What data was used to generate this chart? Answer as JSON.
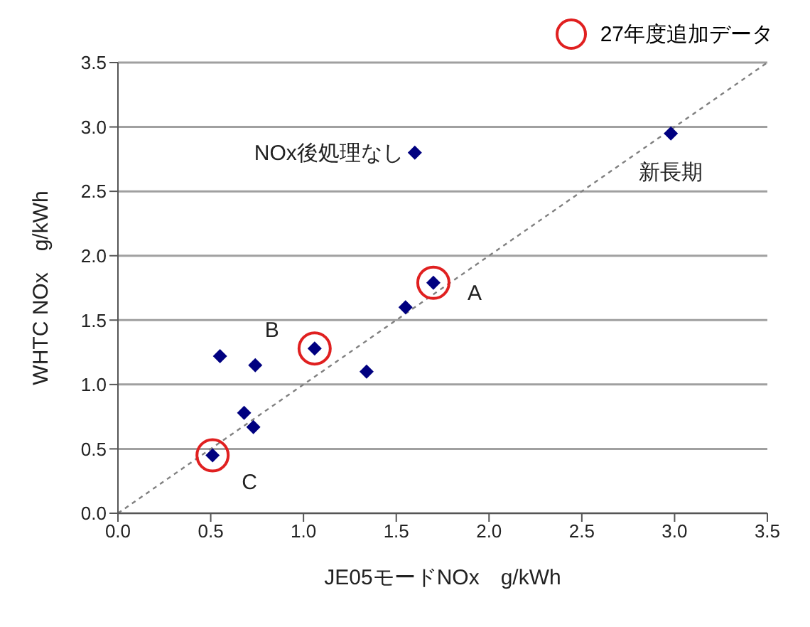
{
  "chart_data": {
    "type": "scatter",
    "xlabel": "JE05モードNOx　g/kWh",
    "ylabel": "WHTC NOx　g/kWh",
    "xlim": [
      0,
      3.5
    ],
    "ylim": [
      0,
      3.5
    ],
    "xticks": [
      {
        "value": 0,
        "label": "0.0"
      },
      {
        "value": 0.5,
        "label": "0.5"
      },
      {
        "value": 1,
        "label": "1.0"
      },
      {
        "value": 1.5,
        "label": "1.5"
      },
      {
        "value": 2,
        "label": "2.0"
      },
      {
        "value": 2.5,
        "label": "2.5"
      },
      {
        "value": 3,
        "label": "3.0"
      },
      {
        "value": 3.5,
        "label": "3.5"
      }
    ],
    "yticks": [
      {
        "value": 0,
        "label": "0.0"
      },
      {
        "value": 0.5,
        "label": "0.5"
      },
      {
        "value": 1,
        "label": "1.0"
      },
      {
        "value": 1.5,
        "label": "1.5"
      },
      {
        "value": 2,
        "label": "2.0"
      },
      {
        "value": 2.5,
        "label": "2.5"
      },
      {
        "value": 3,
        "label": "3.0"
      },
      {
        "value": 3.5,
        "label": "3.5"
      }
    ],
    "grid": "y",
    "legend": "top right",
    "series": [
      {
        "type": "line",
        "color": "#808080",
        "line_style": "dotted",
        "marker": "none",
        "x": [
          0,
          3.5
        ],
        "values": [
          0,
          3.5
        ]
      },
      {
        "color": "#000080",
        "marker": "diamond",
        "x": [
          0.51,
          0.55,
          0.74,
          0.68,
          0.73,
          1.06,
          1.34,
          1.55,
          1.7,
          1.6,
          2.98
        ],
        "values": [
          0.45,
          1.22,
          1.15,
          0.78,
          0.67,
          1.28,
          1.1,
          1.6,
          1.79,
          2.8,
          2.95
        ]
      },
      {
        "name": "27年度追加データ",
        "color": "#e02020",
        "marker": "circle",
        "x": [
          0.51,
          1.06,
          1.7
        ],
        "values": [
          0.45,
          1.28,
          1.79
        ]
      }
    ],
    "annotations": [
      {
        "text": "NOx後処理なし",
        "x": 1.6,
        "y": 2.8
      },
      {
        "text": "新長期",
        "x": 2.98,
        "y": 2.95
      },
      {
        "text": "A",
        "x": 1.7,
        "y": 1.79
      },
      {
        "text": "B",
        "x": 1.06,
        "y": 1.28
      },
      {
        "text": "C",
        "x": 0.51,
        "y": 0.45
      }
    ]
  }
}
